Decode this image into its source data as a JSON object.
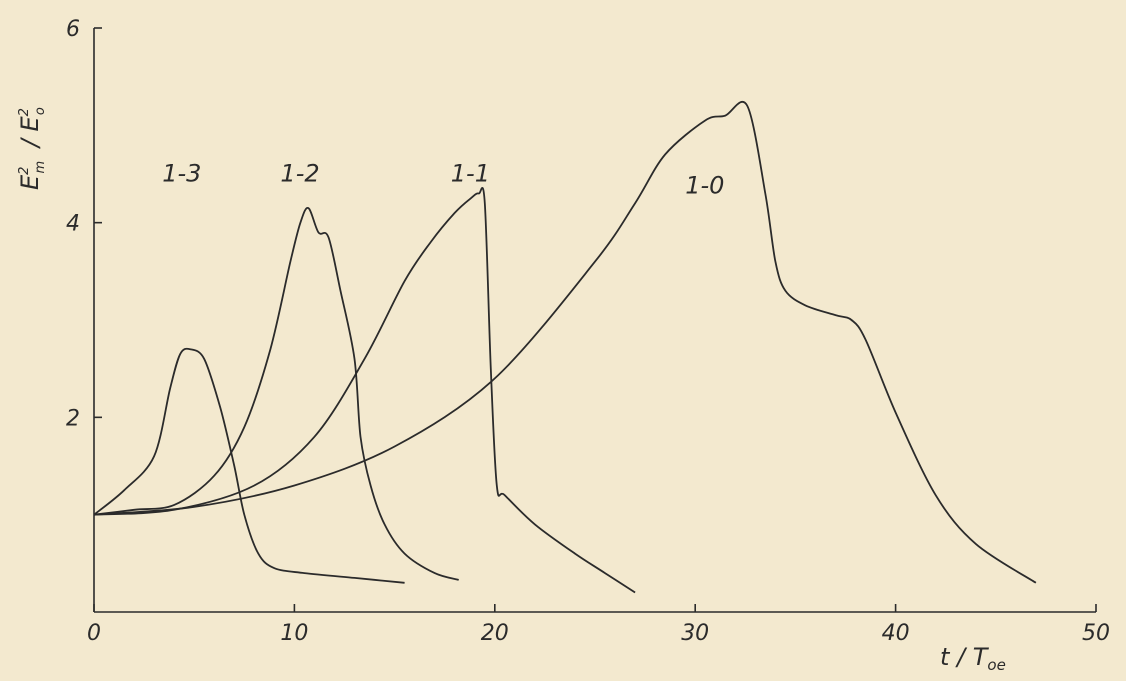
{
  "chart_data": {
    "type": "line",
    "title": "",
    "xlabel": "t / T",
    "xlabel_sub": "oe",
    "ylabel": "E",
    "ylabel_sub_num": "m",
    "ylabel_den": "E",
    "ylabel_sub_den": "o",
    "ylabel_sup": "2",
    "xlim": [
      0,
      50
    ],
    "ylim": [
      0,
      6
    ],
    "xticks": [
      "0",
      "10",
      "20",
      "30",
      "40",
      "50"
    ],
    "yticks": [
      "2",
      "4",
      "6"
    ],
    "grid": false,
    "legend": "none",
    "series": [
      {
        "name": "1-3",
        "x": [
          0,
          1.5,
          3,
          3.8,
          4.3,
          4.8,
          5.5,
          6.3,
          7,
          7.5,
          8.2,
          9,
          10.5,
          13,
          15.5
        ],
        "y": [
          1.0,
          1.25,
          1.6,
          2.3,
          2.65,
          2.7,
          2.6,
          2.1,
          1.5,
          1.0,
          0.6,
          0.45,
          0.4,
          0.35,
          0.3
        ]
      },
      {
        "name": "1-2",
        "x": [
          0,
          2,
          4,
          6,
          7.5,
          8.8,
          9.8,
          10.3,
          10.7,
          11.2,
          11.7,
          12.3,
          13,
          13.3,
          13.8,
          14.5,
          15.5,
          17,
          18.2
        ],
        "y": [
          1.0,
          1.05,
          1.1,
          1.4,
          1.9,
          2.7,
          3.6,
          4.0,
          4.15,
          3.9,
          3.85,
          3.3,
          2.6,
          1.8,
          1.3,
          0.9,
          0.6,
          0.4,
          0.33
        ]
      },
      {
        "name": "1-1",
        "x": [
          0,
          4,
          8,
          11,
          13.5,
          15.5,
          16.8,
          18,
          18.8,
          19.2,
          19.5,
          19.8,
          20.1,
          20.5,
          22,
          24,
          25.5,
          27
        ],
        "y": [
          1.0,
          1.05,
          1.3,
          1.8,
          2.6,
          3.4,
          3.8,
          4.1,
          4.25,
          4.3,
          4.2,
          2.5,
          1.3,
          1.2,
          0.9,
          0.6,
          0.4,
          0.2
        ]
      },
      {
        "name": "1-0",
        "x": [
          0,
          5,
          10,
          15,
          20,
          25,
          27,
          28.5,
          30.5,
          31.5,
          32.6,
          33.5,
          34,
          34.5,
          35.5,
          37,
          37.8,
          38.5,
          40,
          42,
          44,
          47
        ],
        "y": [
          1.0,
          1.08,
          1.3,
          1.7,
          2.4,
          3.6,
          4.2,
          4.7,
          5.05,
          5.1,
          5.2,
          4.3,
          3.6,
          3.3,
          3.15,
          3.05,
          3.0,
          2.8,
          2.05,
          1.2,
          0.7,
          0.3
        ]
      }
    ]
  }
}
